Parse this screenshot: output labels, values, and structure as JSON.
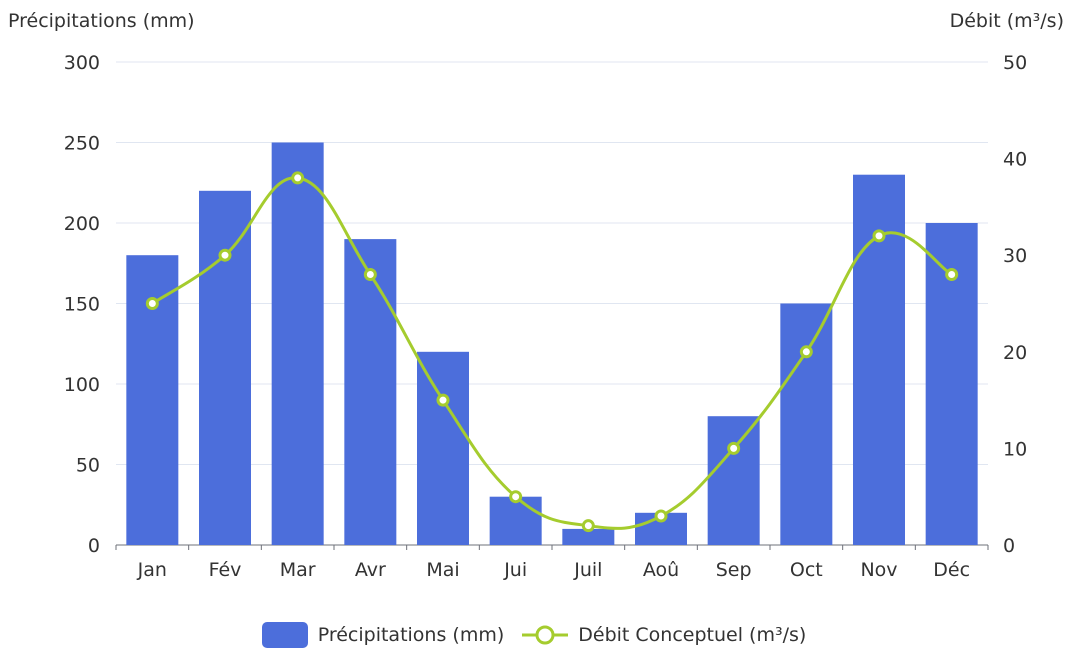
{
  "chart_data": {
    "type": "bar",
    "categories": [
      "Jan",
      "Fév",
      "Mar",
      "Avr",
      "Mai",
      "Jui",
      "Juil",
      "Aoû",
      "Sep",
      "Oct",
      "Nov",
      "Déc"
    ],
    "series": [
      {
        "name": "Précipitations (mm)",
        "type": "bar",
        "axis": "left",
        "color": "#4C6EDB",
        "values": [
          180,
          220,
          250,
          190,
          120,
          30,
          10,
          20,
          80,
          150,
          230,
          200
        ]
      },
      {
        "name": "Débit Conceptuel (m³/s)",
        "type": "line",
        "axis": "right",
        "smooth": true,
        "color": "#A5CC2E",
        "values": [
          25,
          30,
          38,
          28,
          15,
          5,
          2,
          3,
          10,
          20,
          32,
          28
        ]
      }
    ],
    "y_left": {
      "label": "Précipitations (mm)",
      "min": 0,
      "max": 300,
      "ticks": [
        0,
        50,
        100,
        150,
        200,
        250,
        300
      ]
    },
    "y_right": {
      "label": "Débit (m³/s)",
      "min": 0,
      "max": 50,
      "ticks": [
        0,
        10,
        20,
        30,
        40,
        50
      ]
    },
    "grid": true,
    "legend": "bottom-center"
  }
}
